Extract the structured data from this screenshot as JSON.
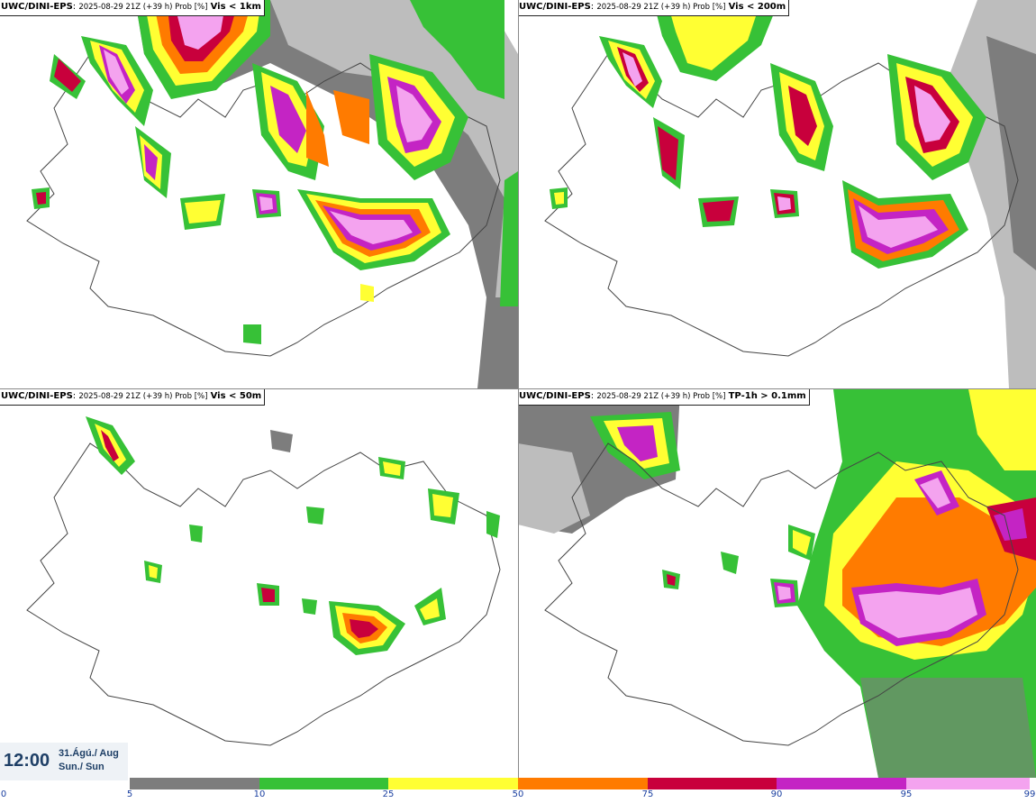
{
  "panels": [
    {
      "model": "UWC/DINI-EPS",
      "run": "2025-08-29 21Z (+39 h) Prob [%]",
      "threshold": "Vis < 1km"
    },
    {
      "model": "UWC/DINI-EPS",
      "run": "2025-08-29 21Z (+39 h) Prob [%]",
      "threshold": "Vis < 200m"
    },
    {
      "model": "UWC/DINI-EPS",
      "run": "2025-08-29 21Z (+39 h) Prob [%]",
      "threshold": "Vis < 50m"
    },
    {
      "model": "UWC/DINI-EPS",
      "run": "2025-08-29 21Z (+39 h) Prob [%]",
      "threshold": "TP-1h > 0.1mm"
    }
  ],
  "time": {
    "clock": "12:00",
    "date": "31.Ágú./ Aug",
    "weekday": "Sun./ Sun"
  },
  "legend": {
    "ticks": [
      "0",
      "5",
      "10",
      "25",
      "50",
      "75",
      "90",
      "95",
      "99"
    ],
    "colors": [
      "#bdbdbd",
      "#7d7d7d",
      "#37c137",
      "#ffff33",
      "#ff7b00",
      "#c8003c",
      "#c424c4",
      "#f4a3ef"
    ]
  }
}
